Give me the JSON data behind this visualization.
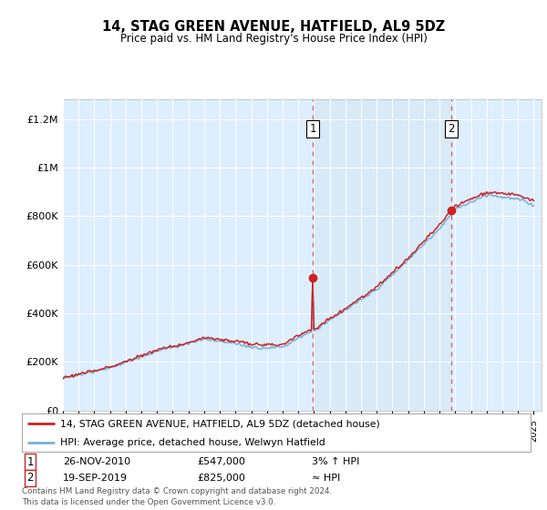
{
  "title": "14, STAG GREEN AVENUE, HATFIELD, AL9 5DZ",
  "subtitle": "Price paid vs. HM Land Registry's House Price Index (HPI)",
  "hpi_label": "HPI: Average price, detached house, Welwyn Hatfield",
  "price_label": "14, STAG GREEN AVENUE, HATFIELD, AL9 5DZ (detached house)",
  "sale1_date": "26-NOV-2010",
  "sale1_price": "£547,000",
  "sale1_hpi": "3% ↑ HPI",
  "sale2_date": "19-SEP-2019",
  "sale2_price": "£825,000",
  "sale2_hpi": "≈ HPI",
  "footer": "Contains HM Land Registry data © Crown copyright and database right 2024.\nThis data is licensed under the Open Government Licence v3.0.",
  "hpi_color": "#7ab0d4",
  "price_color": "#cc2222",
  "dashed_color": "#cc4444",
  "shade_color": "#d8eaf8",
  "plot_bg": "#ddeeff",
  "grid_color": "#ffffff"
}
